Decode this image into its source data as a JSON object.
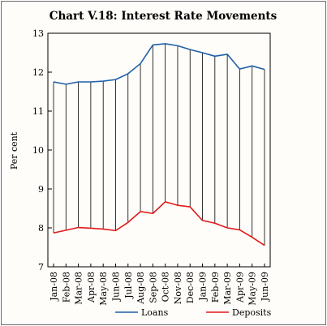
{
  "chart_data": {
    "type": "line",
    "title": "Chart V.18: Interest Rate Movements",
    "ylabel": "Per cent",
    "xlabel": "",
    "ylim": [
      7,
      13
    ],
    "yticks": [
      7,
      8,
      9,
      10,
      11,
      12,
      13
    ],
    "categories": [
      "Jan-08",
      "Feb-08",
      "Mar-08",
      "Apr-08",
      "May-08",
      "Jun-08",
      "Jul-08",
      "Aug-08",
      "Sep-08",
      "Oct-08",
      "Nov-08",
      "Dec-08",
      "Jan-09",
      "Feb-09",
      "Mar-09",
      "Apr-09",
      "May-09",
      "Jun-09"
    ],
    "series": [
      {
        "name": "Loans",
        "color": "#1f5fa8",
        "values": [
          11.75,
          11.69,
          11.75,
          11.75,
          11.77,
          11.81,
          11.96,
          12.22,
          12.7,
          12.73,
          12.68,
          12.58,
          12.5,
          12.41,
          12.46,
          12.08,
          12.16,
          12.07
        ]
      },
      {
        "name": "Deposits",
        "color": "#e01a1a",
        "values": [
          7.87,
          7.94,
          8.01,
          7.99,
          7.97,
          7.93,
          8.14,
          8.42,
          8.37,
          8.67,
          8.58,
          8.54,
          8.19,
          8.12,
          8.0,
          7.95,
          7.76,
          7.55
        ]
      }
    ],
    "drop_lines": true,
    "grid": false,
    "legend_position": "bottom"
  }
}
